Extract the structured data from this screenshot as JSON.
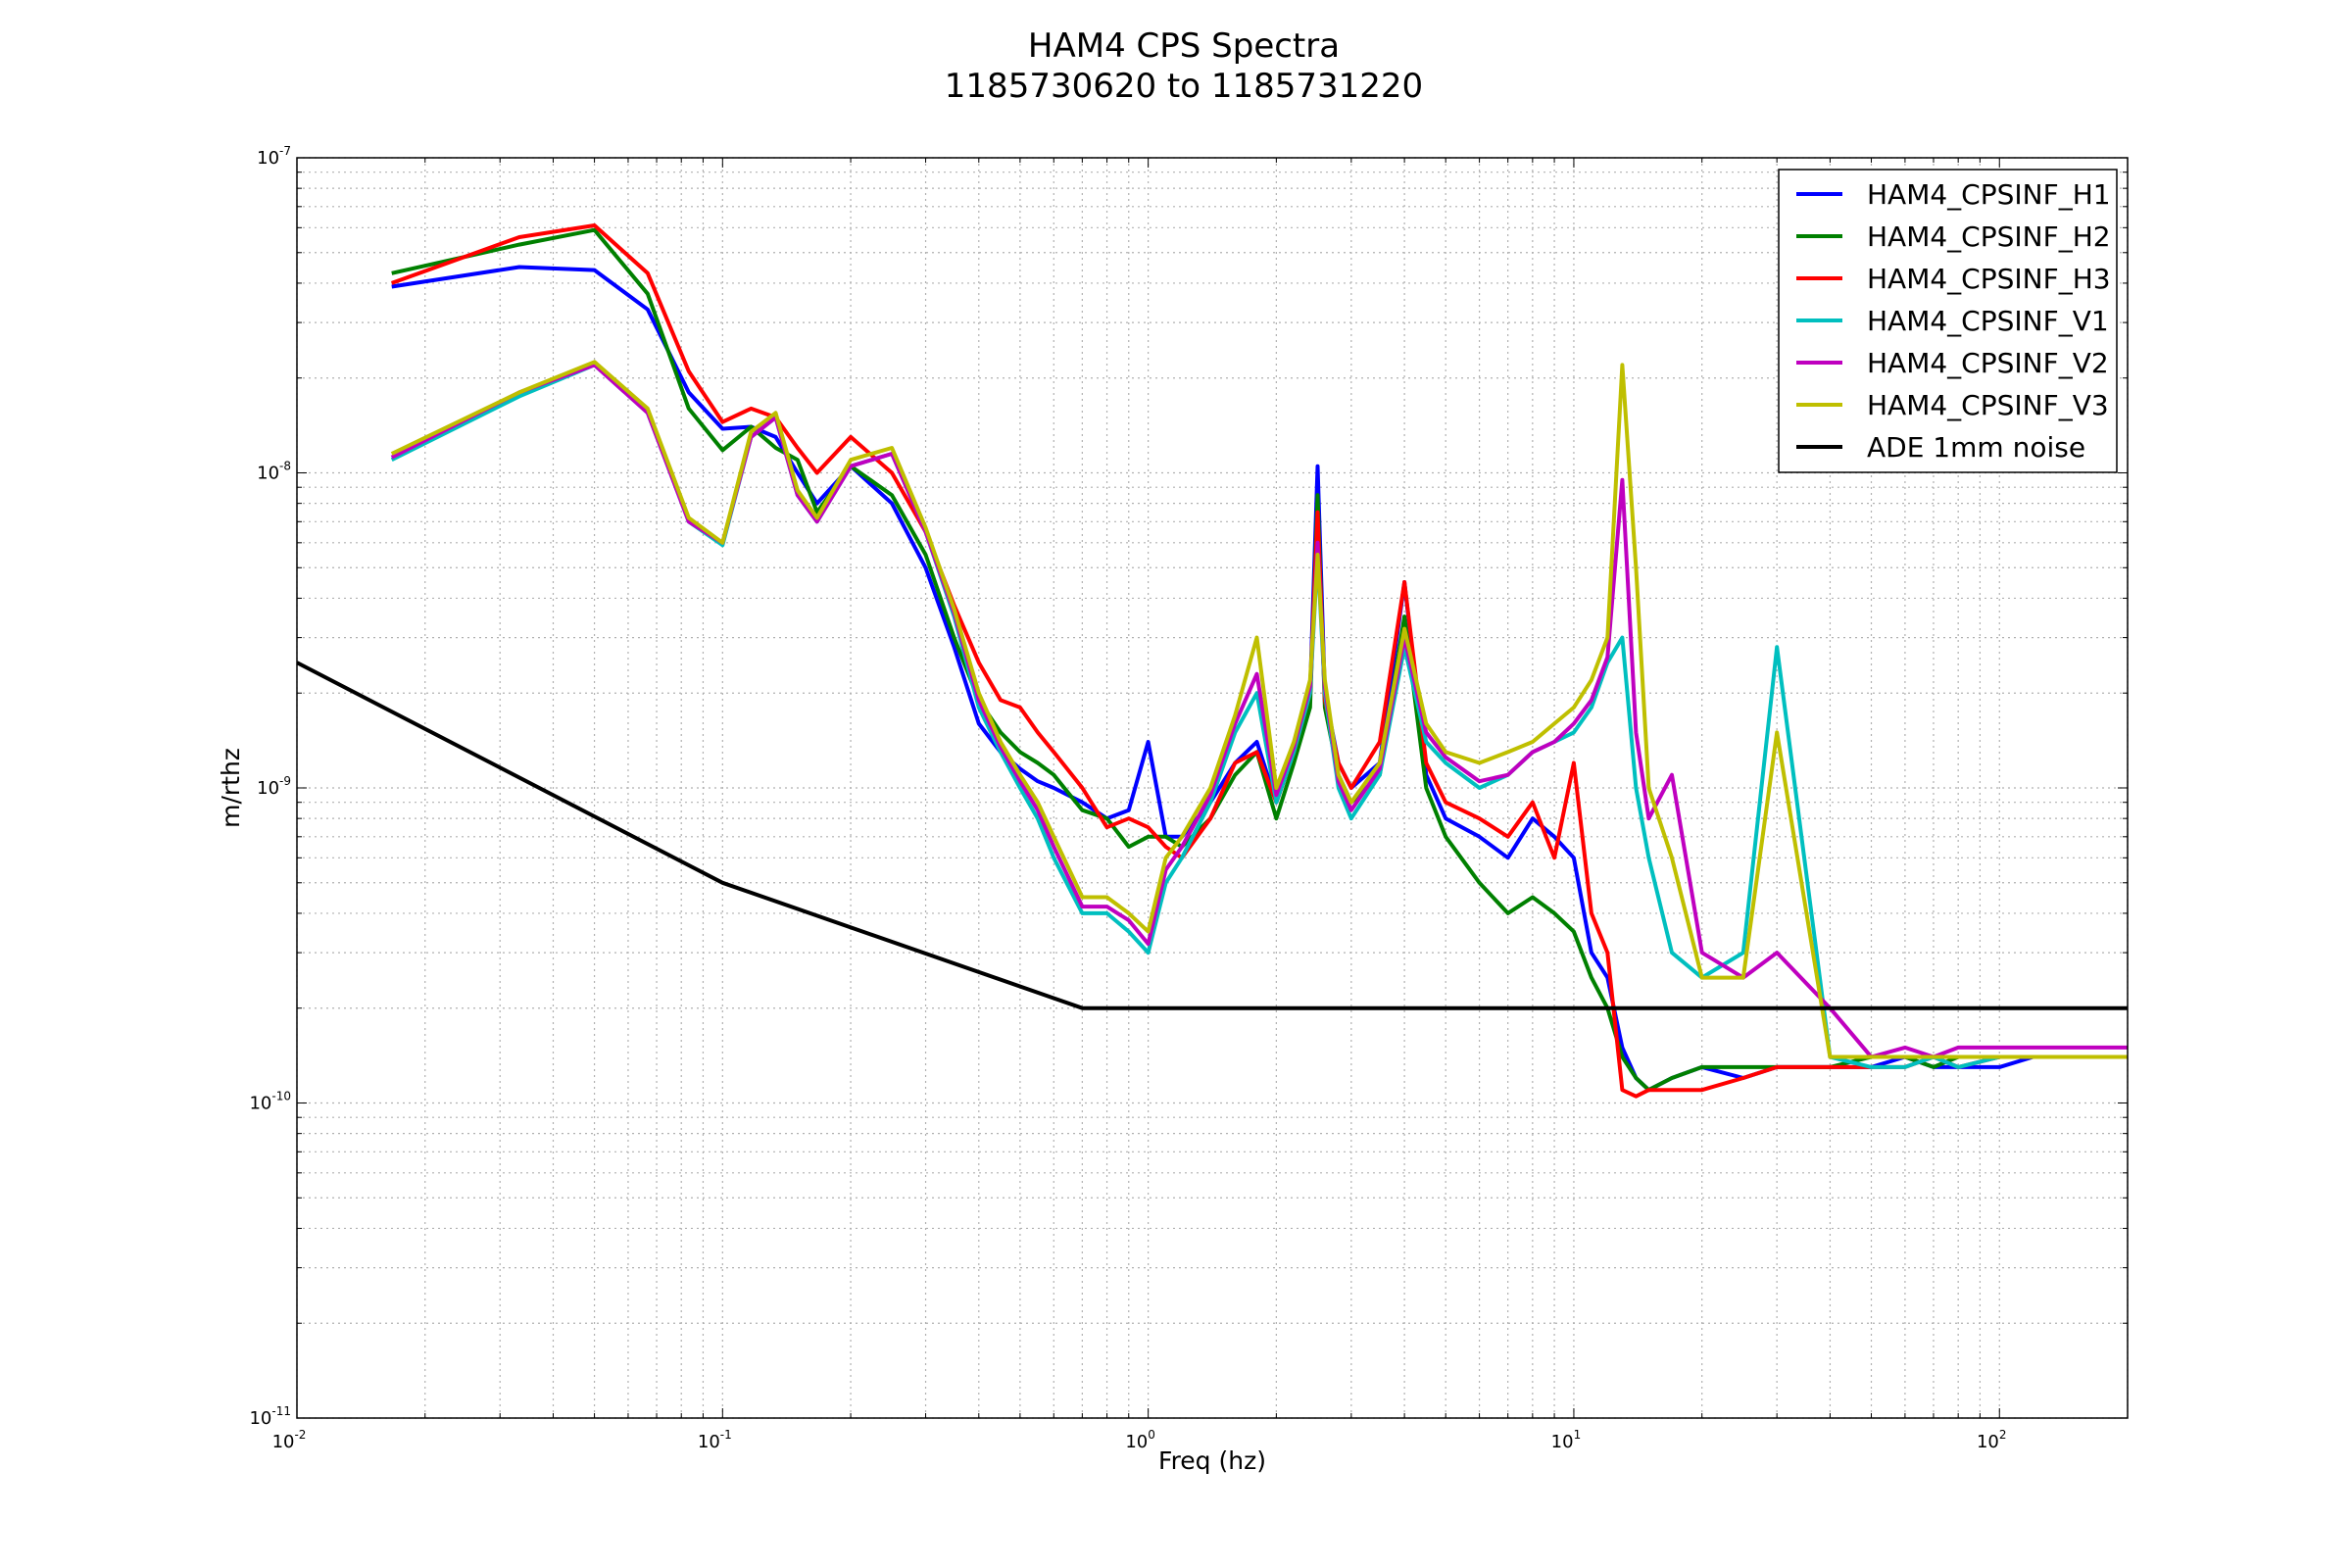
{
  "chart_data": {
    "type": "line",
    "title": "HAM4 CPS Spectra",
    "subtitle": "1185730620 to 1185731220",
    "xlabel": "Freq (hz)",
    "ylabel": "m/rthz",
    "xscale": "log",
    "yscale": "log",
    "xlim": [
      0.01,
      200
    ],
    "ylim": [
      1e-11,
      1e-07
    ],
    "x_ticks": [
      {
        "base": "10",
        "exp": "-2",
        "value": 0.01
      },
      {
        "base": "10",
        "exp": "-1",
        "value": 0.1
      },
      {
        "base": "10",
        "exp": "0",
        "value": 1
      },
      {
        "base": "10",
        "exp": "1",
        "value": 10
      },
      {
        "base": "10",
        "exp": "2",
        "value": 100
      }
    ],
    "y_ticks": [
      {
        "base": "10",
        "exp": "-11",
        "value": 1e-11
      },
      {
        "base": "10",
        "exp": "-10",
        "value": 1e-10
      },
      {
        "base": "10",
        "exp": "-9",
        "value": 1e-09
      },
      {
        "base": "10",
        "exp": "-8",
        "value": 1e-08
      },
      {
        "base": "10",
        "exp": "-7",
        "value": 1e-07
      }
    ],
    "grid": true,
    "legend_position": "top-right",
    "series": [
      {
        "name": "HAM4_CPSINF_H1",
        "color": "#0000ff",
        "x": [
          0.0167,
          0.0333,
          0.05,
          0.0667,
          0.0833,
          0.1,
          0.1167,
          0.1333,
          0.15,
          0.1667,
          0.2,
          0.25,
          0.3,
          0.35,
          0.4,
          0.45,
          0.5,
          0.55,
          0.6,
          0.7,
          0.8,
          0.9,
          1.0,
          1.1,
          1.2,
          1.4,
          1.6,
          1.8,
          2.0,
          2.2,
          2.4,
          2.5,
          2.6,
          2.8,
          3.0,
          3.5,
          4.0,
          4.5,
          5.0,
          6.0,
          7.0,
          8.0,
          9.0,
          10.0,
          11.0,
          12.0,
          13.0,
          14.0,
          15.0,
          17.0,
          20.0,
          25.0,
          30.0,
          40.0,
          50.0,
          60.0,
          70.0,
          80.0,
          100.0,
          120.0,
          150.0,
          200.0
        ],
        "y": [
          3.9e-08,
          4.5e-08,
          4.4e-08,
          3.3e-08,
          1.8e-08,
          1.38e-08,
          1.4e-08,
          1.3e-08,
          1e-08,
          8e-09,
          1.05e-08,
          8e-09,
          5e-09,
          2.8e-09,
          1.6e-09,
          1.3e-09,
          1.15e-09,
          1.05e-09,
          1e-09,
          9e-10,
          8e-10,
          8.5e-10,
          1.4e-09,
          7e-10,
          7e-10,
          9e-10,
          1.2e-09,
          1.4e-09,
          9e-10,
          1.3e-09,
          2e-09,
          1.05e-08,
          2e-09,
          1.2e-09,
          1e-09,
          1.2e-09,
          4.5e-09,
          1.1e-09,
          8e-10,
          7e-10,
          6e-10,
          8e-10,
          7e-10,
          6e-10,
          3e-10,
          2.5e-10,
          1.5e-10,
          1.2e-10,
          1.1e-10,
          1.2e-10,
          1.3e-10,
          1.2e-10,
          1.3e-10,
          1.3e-10,
          1.3e-10,
          1.4e-10,
          1.3e-10,
          1.3e-10,
          1.3e-10,
          1.4e-10,
          1.4e-10,
          1.4e-10
        ]
      },
      {
        "name": "HAM4_CPSINF_H2",
        "color": "#008000",
        "x": [
          0.0167,
          0.0333,
          0.05,
          0.0667,
          0.0833,
          0.1,
          0.1167,
          0.1333,
          0.15,
          0.1667,
          0.2,
          0.25,
          0.3,
          0.35,
          0.4,
          0.45,
          0.5,
          0.55,
          0.6,
          0.7,
          0.8,
          0.9,
          1.0,
          1.1,
          1.2,
          1.4,
          1.6,
          1.8,
          2.0,
          2.2,
          2.4,
          2.5,
          2.6,
          2.8,
          3.0,
          3.5,
          4.0,
          4.5,
          5.0,
          6.0,
          7.0,
          8.0,
          9.0,
          10.0,
          11.0,
          12.0,
          13.0,
          14.0,
          15.0,
          17.0,
          20.0,
          25.0,
          30.0,
          40.0,
          50.0,
          60.0,
          70.0,
          80.0,
          100.0,
          120.0,
          150.0,
          200.0
        ],
        "y": [
          4.3e-08,
          5.3e-08,
          5.9e-08,
          3.7e-08,
          1.6e-08,
          1.18e-08,
          1.4e-08,
          1.2e-08,
          1.1e-08,
          7.5e-09,
          1.05e-08,
          8.5e-09,
          5.5e-09,
          3e-09,
          1.9e-09,
          1.5e-09,
          1.3e-09,
          1.2e-09,
          1.1e-09,
          8.5e-10,
          8e-10,
          6.5e-10,
          7e-10,
          7e-10,
          6.5e-10,
          8e-10,
          1.1e-09,
          1.3e-09,
          8e-10,
          1.2e-09,
          1.8e-09,
          8.5e-09,
          1.8e-09,
          1.1e-09,
          9e-10,
          1.1e-09,
          3.5e-09,
          1e-09,
          7e-10,
          5e-10,
          4e-10,
          4.5e-10,
          4e-10,
          3.5e-10,
          2.5e-10,
          2e-10,
          1.4e-10,
          1.2e-10,
          1.1e-10,
          1.2e-10,
          1.3e-10,
          1.3e-10,
          1.3e-10,
          1.3e-10,
          1.4e-10,
          1.4e-10,
          1.3e-10,
          1.4e-10,
          1.4e-10,
          1.4e-10,
          1.4e-10,
          1.4e-10
        ]
      },
      {
        "name": "HAM4_CPSINF_H3",
        "color": "#ff0000",
        "x": [
          0.0167,
          0.0333,
          0.05,
          0.0667,
          0.0833,
          0.1,
          0.1167,
          0.1333,
          0.15,
          0.1667,
          0.2,
          0.25,
          0.3,
          0.35,
          0.4,
          0.45,
          0.5,
          0.55,
          0.6,
          0.7,
          0.8,
          0.9,
          1.0,
          1.1,
          1.2,
          1.4,
          1.6,
          1.8,
          2.0,
          2.2,
          2.4,
          2.5,
          2.6,
          2.8,
          3.0,
          3.5,
          4.0,
          4.5,
          5.0,
          6.0,
          7.0,
          8.0,
          9.0,
          10.0,
          11.0,
          12.0,
          13.0,
          14.0,
          15.0,
          17.0,
          20.0,
          25.0,
          30.0,
          40.0,
          50.0,
          60.0,
          70.0,
          80.0,
          100.0,
          120.0,
          150.0,
          200.0
        ],
        "y": [
          4e-08,
          5.6e-08,
          6.1e-08,
          4.3e-08,
          2.1e-08,
          1.45e-08,
          1.6e-08,
          1.5e-08,
          1.2e-08,
          1e-08,
          1.3e-08,
          1e-08,
          6.5e-09,
          3.8e-09,
          2.5e-09,
          1.9e-09,
          1.8e-09,
          1.5e-09,
          1.3e-09,
          1e-09,
          7.5e-10,
          8e-10,
          7.5e-10,
          6.5e-10,
          6e-10,
          8e-10,
          1.2e-09,
          1.3e-09,
          9e-10,
          1.3e-09,
          2e-09,
          7.5e-09,
          1.9e-09,
          1.2e-09,
          1e-09,
          1.4e-09,
          4.5e-09,
          1.2e-09,
          9e-10,
          8e-10,
          7e-10,
          9e-10,
          6e-10,
          1.2e-09,
          4e-10,
          3e-10,
          1.1e-10,
          1.05e-10,
          1.1e-10,
          1.1e-10,
          1.1e-10,
          1.2e-10,
          1.3e-10,
          1.3e-10,
          1.3e-10,
          1.3e-10,
          1.4e-10,
          1.3e-10,
          1.4e-10,
          1.4e-10,
          1.4e-10,
          1.4e-10
        ]
      },
      {
        "name": "HAM4_CPSINF_V1",
        "color": "#00bfbf",
        "x": [
          0.0167,
          0.0333,
          0.05,
          0.0667,
          0.0833,
          0.1,
          0.1167,
          0.1333,
          0.15,
          0.1667,
          0.2,
          0.25,
          0.3,
          0.35,
          0.4,
          0.45,
          0.5,
          0.55,
          0.6,
          0.7,
          0.8,
          0.9,
          1.0,
          1.1,
          1.2,
          1.4,
          1.6,
          1.8,
          2.0,
          2.2,
          2.4,
          2.5,
          2.6,
          2.8,
          3.0,
          3.5,
          4.0,
          4.5,
          5.0,
          6.0,
          7.0,
          8.0,
          9.0,
          10.0,
          11.0,
          12.0,
          13.0,
          14.0,
          15.0,
          17.0,
          20.0,
          25.0,
          30.0,
          40.0,
          50.0,
          60.0,
          70.0,
          80.0,
          100.0,
          120.0,
          150.0,
          200.0
        ],
        "y": [
          1.1e-08,
          1.75e-08,
          2.2e-08,
          1.55e-08,
          7e-09,
          5.9e-09,
          1.3e-08,
          1.5e-08,
          8.5e-09,
          7e-09,
          1.05e-08,
          1.15e-08,
          6.5e-09,
          3.5e-09,
          1.8e-09,
          1.3e-09,
          1e-09,
          8e-10,
          6e-10,
          4e-10,
          4e-10,
          3.5e-10,
          3e-10,
          5e-10,
          6e-10,
          9e-10,
          1.5e-09,
          2e-09,
          9e-10,
          1.3e-09,
          2e-09,
          5.5e-09,
          2e-09,
          1e-09,
          8e-10,
          1.1e-09,
          2.8e-09,
          1.4e-09,
          1.2e-09,
          1e-09,
          1.1e-09,
          1.3e-09,
          1.4e-09,
          1.5e-09,
          1.8e-09,
          2.5e-09,
          3e-09,
          1e-09,
          6e-10,
          3e-10,
          2.5e-10,
          3e-10,
          2.8e-09,
          1.4e-10,
          1.3e-10,
          1.3e-10,
          1.4e-10,
          1.3e-10,
          1.4e-10,
          1.4e-10,
          1.4e-10,
          1.4e-10
        ]
      },
      {
        "name": "HAM4_CPSINF_V2",
        "color": "#bf00bf",
        "x": [
          0.0167,
          0.0333,
          0.05,
          0.0667,
          0.0833,
          0.1,
          0.1167,
          0.1333,
          0.15,
          0.1667,
          0.2,
          0.25,
          0.3,
          0.35,
          0.4,
          0.45,
          0.5,
          0.55,
          0.6,
          0.7,
          0.8,
          0.9,
          1.0,
          1.1,
          1.2,
          1.4,
          1.6,
          1.8,
          2.0,
          2.2,
          2.4,
          2.5,
          2.6,
          2.8,
          3.0,
          3.5,
          4.0,
          4.5,
          5.0,
          6.0,
          7.0,
          8.0,
          9.0,
          10.0,
          11.0,
          12.0,
          13.0,
          14.0,
          15.0,
          17.0,
          20.0,
          25.0,
          30.0,
          40.0,
          50.0,
          60.0,
          70.0,
          80.0,
          100.0,
          120.0,
          150.0,
          200.0
        ],
        "y": [
          1.12e-08,
          1.8e-08,
          2.2e-08,
          1.55e-08,
          7e-09,
          6e-09,
          1.3e-08,
          1.5e-08,
          8.5e-09,
          7e-09,
          1.05e-08,
          1.15e-08,
          6.5e-09,
          3.6e-09,
          1.9e-09,
          1.35e-09,
          1.05e-09,
          8.5e-10,
          6.5e-10,
          4.2e-10,
          4.2e-10,
          3.8e-10,
          3.2e-10,
          5.5e-10,
          6.5e-10,
          9.5e-10,
          1.6e-09,
          2.3e-09,
          9.5e-10,
          1.35e-09,
          2.1e-09,
          6e-09,
          2.1e-09,
          1.05e-09,
          8.5e-10,
          1.15e-09,
          3e-09,
          1.5e-09,
          1.25e-09,
          1.05e-09,
          1.1e-09,
          1.3e-09,
          1.4e-09,
          1.6e-09,
          1.9e-09,
          2.6e-09,
          9.5e-09,
          1.5e-09,
          8e-10,
          1.1e-09,
          3e-10,
          2.5e-10,
          3e-10,
          2e-10,
          1.4e-10,
          1.5e-10,
          1.4e-10,
          1.5e-10,
          1.5e-10,
          1.5e-10,
          1.5e-10,
          1.5e-10
        ]
      },
      {
        "name": "HAM4_CPSINF_V3",
        "color": "#bfbf00",
        "x": [
          0.0167,
          0.0333,
          0.05,
          0.0667,
          0.0833,
          0.1,
          0.1167,
          0.1333,
          0.15,
          0.1667,
          0.2,
          0.25,
          0.3,
          0.35,
          0.4,
          0.45,
          0.5,
          0.55,
          0.6,
          0.7,
          0.8,
          0.9,
          1.0,
          1.1,
          1.2,
          1.4,
          1.6,
          1.8,
          2.0,
          2.2,
          2.4,
          2.5,
          2.6,
          2.8,
          3.0,
          3.5,
          4.0,
          4.5,
          5.0,
          6.0,
          7.0,
          8.0,
          9.0,
          10.0,
          11.0,
          12.0,
          13.0,
          14.0,
          15.0,
          17.0,
          20.0,
          25.0,
          30.0,
          40.0,
          50.0,
          60.0,
          70.0,
          80.0,
          100.0,
          120.0,
          150.0,
          200.0
        ],
        "y": [
          1.15e-08,
          1.8e-08,
          2.25e-08,
          1.6e-08,
          7.2e-09,
          6e-09,
          1.35e-08,
          1.55e-08,
          8.8e-09,
          7.2e-09,
          1.1e-08,
          1.2e-08,
          6.7e-09,
          3.7e-09,
          2e-09,
          1.4e-09,
          1.1e-09,
          9e-10,
          7e-10,
          4.5e-10,
          4.5e-10,
          4e-10,
          3.5e-10,
          6e-10,
          7e-10,
          1e-09,
          1.7e-09,
          3e-09,
          1e-09,
          1.4e-09,
          2.2e-09,
          5.5e-09,
          2.2e-09,
          1.1e-09,
          9e-10,
          1.2e-09,
          3.2e-09,
          1.6e-09,
          1.3e-09,
          1.2e-09,
          1.3e-09,
          1.4e-09,
          1.6e-09,
          1.8e-09,
          2.2e-09,
          3e-09,
          2.2e-08,
          5e-09,
          1e-09,
          6e-10,
          2.5e-10,
          2.5e-10,
          1.5e-09,
          1.4e-10,
          1.4e-10,
          1.4e-10,
          1.4e-10,
          1.4e-10,
          1.4e-10,
          1.4e-10,
          1.4e-10,
          1.4e-10
        ]
      },
      {
        "name": "ADE 1mm noise",
        "color": "#000000",
        "x": [
          0.01,
          0.1,
          0.7,
          200.0
        ],
        "y": [
          2.5e-09,
          5e-10,
          2e-10,
          2e-10
        ]
      }
    ]
  }
}
